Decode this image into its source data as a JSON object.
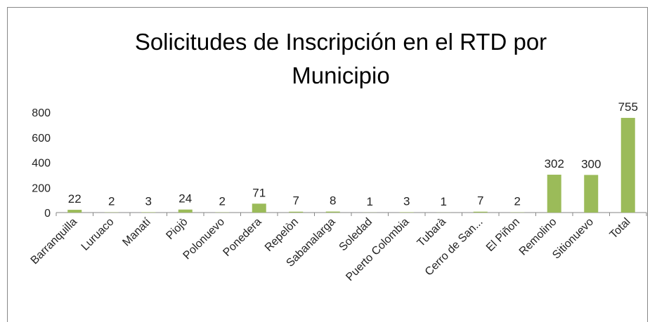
{
  "chart_data": {
    "type": "bar",
    "title": "Solicitudes de Inscripción en el RTD por Municipio",
    "categories": [
      "Barranquilla",
      "Luruaco",
      "Manatí",
      "Piojò",
      "Polonuevo",
      "Ponedera",
      "Repelòn",
      "Sabanalarga",
      "Soledad",
      "Puerto Colombia",
      "Tubarà",
      "Cerro de San...",
      "El Piñon",
      "Remolino",
      "Sitionuevo",
      "Total"
    ],
    "values": [
      22,
      2,
      3,
      24,
      2,
      71,
      7,
      8,
      1,
      3,
      1,
      7,
      2,
      302,
      300,
      755
    ],
    "color": "#9bbb59",
    "ylim": [
      0,
      800
    ],
    "yticks": [
      0,
      200,
      400,
      600,
      800
    ],
    "grid": false
  }
}
